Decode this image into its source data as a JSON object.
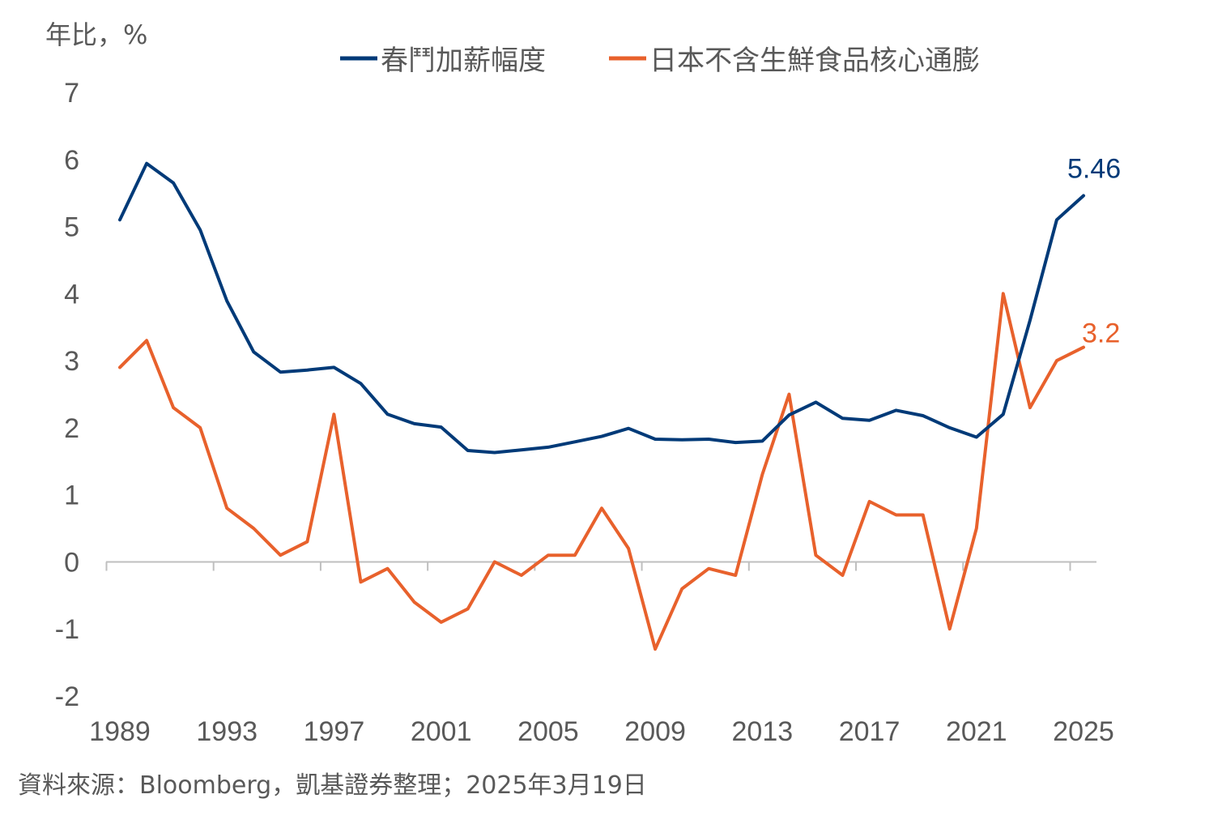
{
  "chart_data": {
    "type": "line",
    "unit_label": "年比，%",
    "ylim": [
      -2,
      7
    ],
    "yticks": [
      7,
      6,
      5,
      4,
      3,
      2,
      1,
      0,
      -1,
      -2
    ],
    "x": [
      1989,
      1990,
      1991,
      1992,
      1993,
      1994,
      1995,
      1996,
      1997,
      1998,
      1999,
      2000,
      2001,
      2002,
      2003,
      2004,
      2005,
      2006,
      2007,
      2008,
      2009,
      2010,
      2011,
      2012,
      2013,
      2014,
      2015,
      2016,
      2017,
      2018,
      2019,
      2020,
      2021,
      2022,
      2023,
      2024,
      2025
    ],
    "xticks": [
      1989,
      1993,
      1997,
      2001,
      2005,
      2009,
      2013,
      2017,
      2021,
      2025
    ],
    "legend_position": "top",
    "grid": false,
    "series": [
      {
        "name": "春鬥加薪幅度",
        "color": "#003A78",
        "values": [
          5.1,
          5.94,
          5.65,
          4.95,
          3.89,
          3.13,
          2.83,
          2.86,
          2.9,
          2.66,
          2.2,
          2.06,
          2.01,
          1.66,
          1.63,
          1.67,
          1.71,
          1.79,
          1.87,
          1.99,
          1.83,
          1.82,
          1.83,
          1.78,
          1.8,
          2.19,
          2.38,
          2.14,
          2.11,
          2.26,
          2.18,
          2.0,
          1.86,
          2.2,
          3.6,
          5.1,
          5.46
        ],
        "end_label": "5.46"
      },
      {
        "name": "日本不含生鮮食品核心通膨",
        "color": "#E8612C",
        "values": [
          2.9,
          3.3,
          2.3,
          2.0,
          0.8,
          0.5,
          0.1,
          0.3,
          2.2,
          -0.3,
          -0.1,
          -0.6,
          -0.9,
          -0.7,
          0.0,
          -0.2,
          0.1,
          0.1,
          0.8,
          0.2,
          -1.3,
          -0.4,
          -0.1,
          -0.2,
          1.3,
          2.5,
          0.1,
          -0.2,
          0.9,
          0.7,
          0.7,
          -1.0,
          0.5,
          4.0,
          2.3,
          3.0,
          3.2
        ],
        "end_label": "3.2"
      }
    ]
  },
  "source_text": "資料來源：Bloomberg，凱基證券整理；2025年3月19日"
}
